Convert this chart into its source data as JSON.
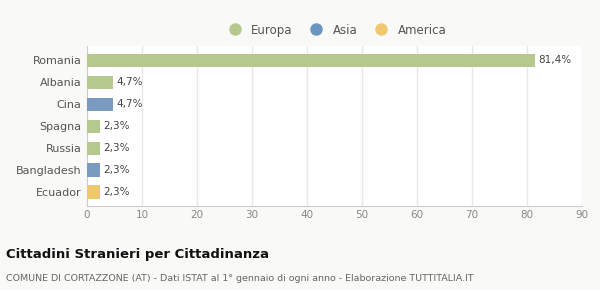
{
  "categories": [
    "Romania",
    "Albania",
    "Cina",
    "Spagna",
    "Russia",
    "Bangladesh",
    "Ecuador"
  ],
  "values": [
    81.4,
    4.7,
    4.7,
    2.3,
    2.3,
    2.3,
    2.3
  ],
  "labels": [
    "81,4%",
    "4,7%",
    "4,7%",
    "2,3%",
    "2,3%",
    "2,3%",
    "2,3%"
  ],
  "colors": [
    "#b5c98e",
    "#b5c98e",
    "#7a9abf",
    "#b5c98e",
    "#b5c98e",
    "#7a9abf",
    "#f0c96a"
  ],
  "legend": [
    {
      "label": "Europa",
      "color": "#b5c98e"
    },
    {
      "label": "Asia",
      "color": "#6b96c1"
    },
    {
      "label": "America",
      "color": "#f0c870"
    }
  ],
  "xlim": [
    0,
    90
  ],
  "xticks": [
    0,
    10,
    20,
    30,
    40,
    50,
    60,
    70,
    80,
    90
  ],
  "title": "Cittadini Stranieri per Cittadinanza",
  "subtitle": "COMUNE DI CORTAZZONE (AT) - Dati ISTAT al 1° gennaio di ogni anno - Elaborazione TUTTITALIA.IT",
  "background_color": "#f9f9f7",
  "plot_bg_color": "#ffffff",
  "grid_color": "#e8e8e8",
  "bar_height": 0.6
}
